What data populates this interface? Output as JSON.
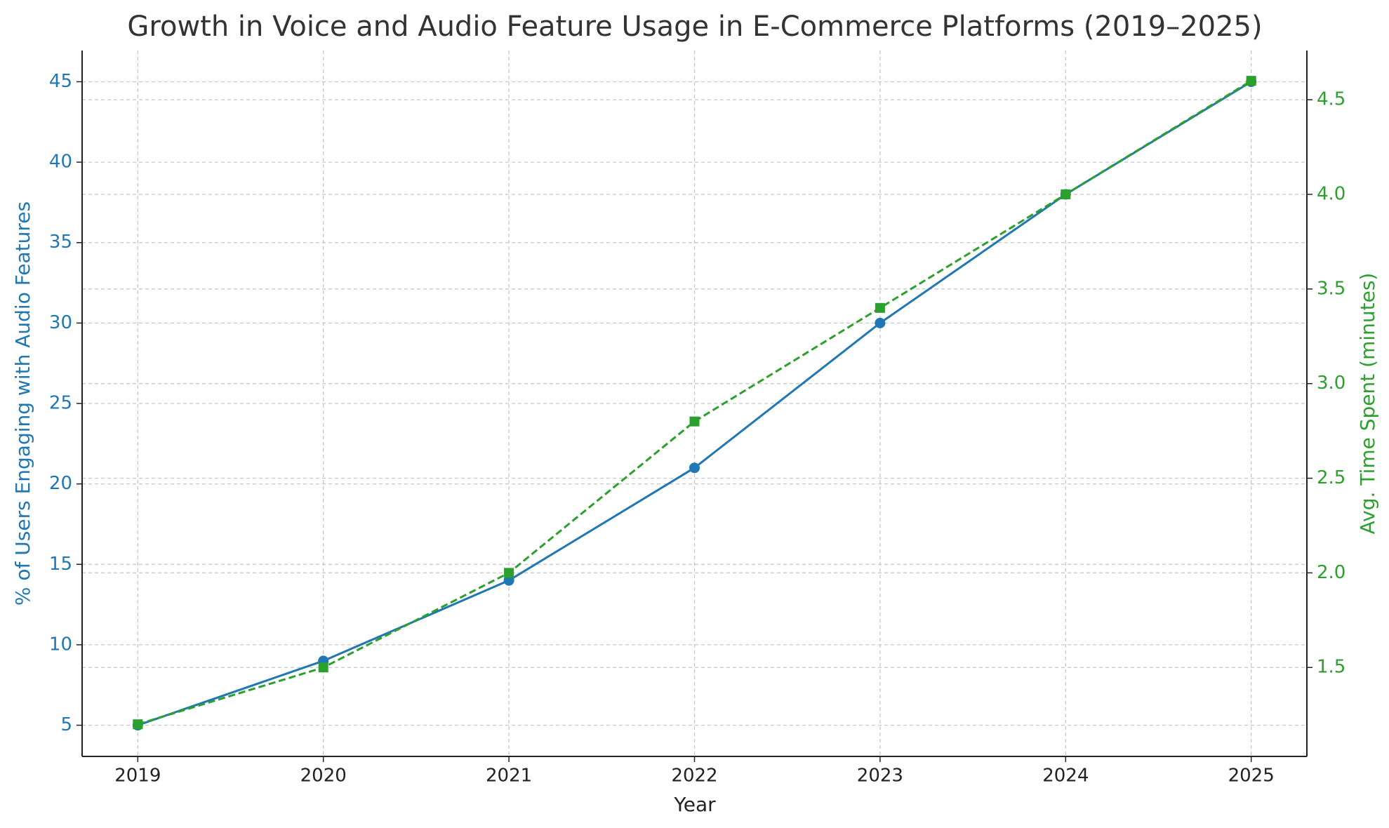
{
  "chart_data": {
    "type": "line",
    "title": "Growth in Voice and Audio Feature Usage in E-Commerce Platforms (2019–2025)",
    "x_label": "Year",
    "y_label": "% of Users Engaging with Audio Features",
    "y2_label": "Avg. Time Spent (minutes)",
    "x": [
      2019,
      2020,
      2021,
      2022,
      2023,
      2024,
      2025
    ],
    "xlim": [
      2018.7,
      2025.3
    ],
    "xticks": [
      2019,
      2020,
      2021,
      2022,
      2023,
      2024,
      2025
    ],
    "ylim": [
      3.06,
      46.94
    ],
    "yticks": [
      5,
      10,
      15,
      20,
      25,
      30,
      35,
      40,
      45
    ],
    "y2lim": [
      1.03,
      4.76
    ],
    "y2ticks": [
      1.5,
      {
        "value": 2,
        "label": "2.0"
      },
      2.5,
      {
        "value": 3,
        "label": "3.0"
      },
      3.5,
      {
        "value": 4,
        "label": "4.0"
      },
      4.5
    ],
    "grid": true,
    "series": [
      {
        "name": "% of Users Engaging with Audio Features",
        "color": "#1f77b4",
        "linestyle": "solid",
        "marker": "circle",
        "axis": "y",
        "values": [
          5,
          9,
          14,
          21,
          30,
          38,
          45
        ]
      },
      {
        "name": "Avg. Time Spent (minutes)",
        "color": "#2ca02c",
        "linestyle": "dashed",
        "marker": "square",
        "axis": "y2",
        "values": [
          1.2,
          1.5,
          2.0,
          2.8,
          3.4,
          4.0,
          4.6
        ]
      }
    ]
  }
}
